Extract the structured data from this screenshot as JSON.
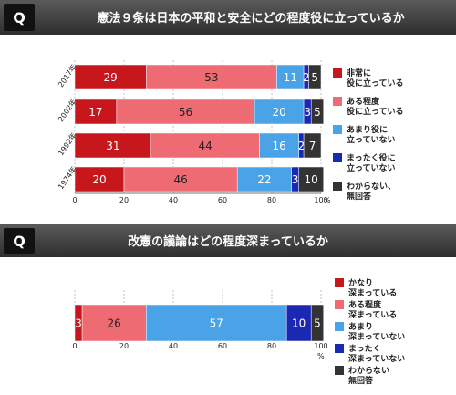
{
  "panels": [
    {
      "q_label": "Q",
      "title": "憲法９条は日本の平和と安全にどの程度役に立っているか",
      "legend": [
        {
          "label": "非常に\n役に立っている",
          "color": "#c8161d"
        },
        {
          "label": "ある程度\n役に立っている",
          "color": "#ee6b73"
        },
        {
          "label": "あまり役に\n立っていない",
          "color": "#4aa3e6"
        },
        {
          "label": "まったく役に\n立っていない",
          "color": "#1a28b4"
        },
        {
          "label": "わからない、\n無回答",
          "color": "#333333"
        }
      ],
      "chart_data": {
        "type": "bar",
        "orientation": "horizontal",
        "stacked": true,
        "categories": [
          "2017年",
          "2002年",
          "1992年",
          "1974年"
        ],
        "series": [
          {
            "name": "非常に役に立っている",
            "values": [
              29,
              17,
              31,
              20
            ]
          },
          {
            "name": "ある程度役に立っている",
            "values": [
              53,
              56,
              44,
              46
            ]
          },
          {
            "name": "あまり役に立っていない",
            "values": [
              11,
              20,
              16,
              22
            ]
          },
          {
            "name": "まったく役に立っていない",
            "values": [
              2,
              3,
              2,
              3
            ]
          },
          {
            "name": "わからない、無回答",
            "values": [
              5,
              5,
              7,
              10
            ]
          }
        ],
        "xlim": [
          0,
          100
        ],
        "xticks": [
          "0",
          "20",
          "40",
          "60",
          "80",
          "100"
        ],
        "unit": "%",
        "grid": true,
        "legend_position": "right"
      }
    },
    {
      "q_label": "Q",
      "title": "改憲の議論はどの程度深まっているか",
      "legend": [
        {
          "label": "かなり\n深まっている",
          "color": "#c8161d"
        },
        {
          "label": "ある程度\n深まっている",
          "color": "#ee6b73"
        },
        {
          "label": "あまり\n深まっていない",
          "color": "#4aa3e6"
        },
        {
          "label": "まったく\n深まっていない",
          "color": "#1a28b4"
        },
        {
          "label": "わからない\n無回答",
          "color": "#333333"
        }
      ],
      "chart_data": {
        "type": "bar",
        "orientation": "horizontal",
        "stacked": true,
        "categories": [
          ""
        ],
        "series": [
          {
            "name": "かなり深まっている",
            "values": [
              3
            ]
          },
          {
            "name": "ある程度深まっている",
            "values": [
              26
            ]
          },
          {
            "name": "あまり深まっていない",
            "values": [
              57
            ]
          },
          {
            "name": "まったく深まっていない",
            "values": [
              10
            ]
          },
          {
            "name": "わからない無回答",
            "values": [
              5
            ]
          }
        ],
        "xlim": [
          0,
          100
        ],
        "xticks": [
          "0",
          "20",
          "40",
          "60",
          "80",
          "100"
        ],
        "unit": "%",
        "grid": true,
        "legend_position": "right"
      }
    }
  ]
}
